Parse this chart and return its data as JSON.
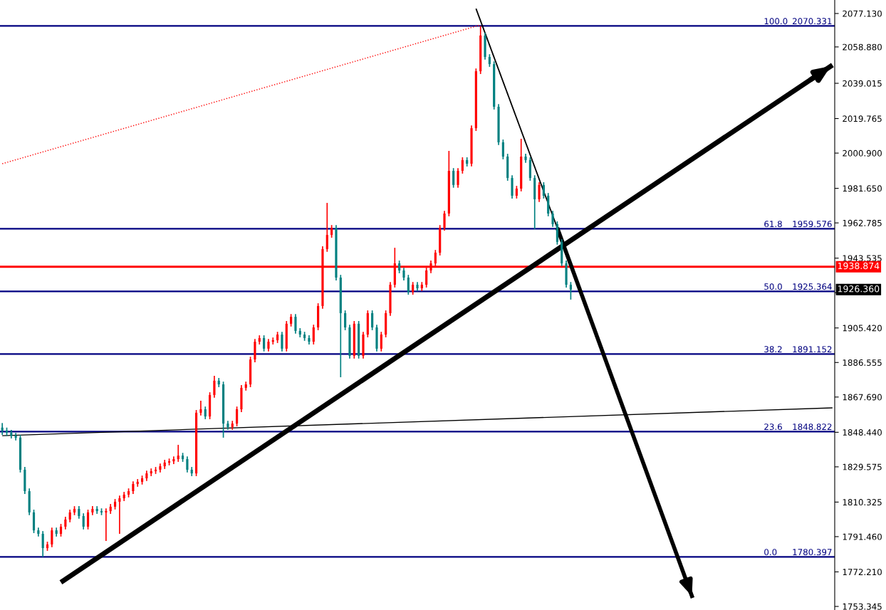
{
  "chart_data": {
    "type": "candlestick",
    "categories": [
      null,
      null,
      null,
      null,
      null,
      null,
      null,
      null,
      null,
      null,
      null,
      null,
      null,
      null,
      null,
      null,
      null,
      null,
      null,
      null,
      null,
      null,
      null,
      null,
      null,
      null,
      null,
      null,
      null,
      null,
      null,
      null,
      null,
      null,
      null,
      null,
      null,
      null,
      null,
      null,
      null,
      null,
      null,
      null,
      null,
      null,
      null,
      null,
      null,
      null,
      null,
      null,
      null,
      null,
      null,
      null,
      null,
      null,
      null,
      null,
      null,
      null,
      null,
      null,
      null,
      null,
      null,
      null,
      null,
      null,
      null,
      null,
      null,
      null,
      null,
      null,
      null,
      null,
      null,
      null,
      null,
      null,
      null,
      null,
      null,
      null,
      null,
      null,
      null,
      null,
      null,
      null,
      null,
      null,
      null,
      null,
      null,
      null,
      null,
      null,
      null,
      null,
      null,
      null,
      null,
      null,
      null,
      null,
      null,
      null,
      null,
      null,
      null,
      null,
      null,
      null,
      null,
      null,
      null,
      null,
      null,
      null,
      null,
      null,
      null,
      null,
      null,
      null,
      null,
      null,
      null,
      null,
      null,
      null,
      null,
      null,
      null,
      null,
      null,
      null,
      null,
      null,
      null,
      null,
      null,
      null,
      null,
      null,
      null,
      null,
      null,
      null,
      null,
      null,
      null,
      null,
      null,
      null,
      null,
      null,
      null,
      null,
      null,
      null,
      null,
      null,
      null,
      null,
      null,
      null,
      null,
      null,
      null,
      null,
      null,
      null,
      null,
      null,
      null,
      null,
      null,
      null,
      null,
      null,
      null
    ],
    "ohlc": [
      [
        1851.0,
        1853.5,
        1847.0,
        1849.4
      ],
      [
        1849.4,
        1851.0,
        1846.5,
        1848.2
      ],
      [
        1848.2,
        1849.7,
        1845.1,
        1846.6
      ],
      [
        1846.6,
        1848.1,
        1844.0,
        1845.5
      ],
      [
        1845.5,
        1847.0,
        1826.5,
        1828.0
      ],
      [
        1828.0,
        1829.5,
        1814.8,
        1816.3
      ],
      [
        1816.3,
        1817.8,
        1803.2,
        1804.7
      ],
      [
        1804.7,
        1806.2,
        1793.4,
        1794.9
      ],
      [
        1794.9,
        1796.4,
        1791.5,
        1793.0
      ],
      [
        1793.0,
        1794.5,
        1780.4,
        1785.2
      ],
      [
        1785.2,
        1788.7,
        1783.7,
        1787.2
      ],
      [
        1787.2,
        1796.4,
        1785.7,
        1794.9
      ],
      [
        1794.9,
        1796.4,
        1791.5,
        1793.0
      ],
      [
        1793.0,
        1798.4,
        1791.5,
        1796.9
      ],
      [
        1796.9,
        1802.3,
        1795.4,
        1800.8
      ],
      [
        1800.8,
        1806.2,
        1799.3,
        1804.7
      ],
      [
        1804.7,
        1808.1,
        1803.2,
        1806.6
      ],
      [
        1806.6,
        1808.1,
        1801.2,
        1802.7
      ],
      [
        1802.7,
        1804.2,
        1795.4,
        1796.9
      ],
      [
        1796.9,
        1806.2,
        1795.4,
        1804.7
      ],
      [
        1804.7,
        1808.1,
        1803.2,
        1806.6
      ],
      [
        1806.6,
        1808.1,
        1803.9,
        1805.4
      ],
      [
        1805.4,
        1806.9,
        1803.2,
        1804.7
      ],
      [
        1804.7,
        1806.9,
        1789.1,
        1805.4
      ],
      [
        1805.4,
        1809.3,
        1803.9,
        1807.8
      ],
      [
        1807.8,
        1812.0,
        1806.3,
        1810.5
      ],
      [
        1810.5,
        1813.9,
        1793.0,
        1812.4
      ],
      [
        1812.4,
        1815.9,
        1810.9,
        1814.4
      ],
      [
        1814.4,
        1817.8,
        1812.9,
        1816.3
      ],
      [
        1816.3,
        1821.7,
        1814.8,
        1820.2
      ],
      [
        1820.2,
        1822.9,
        1818.7,
        1821.4
      ],
      [
        1821.4,
        1824.8,
        1819.9,
        1823.3
      ],
      [
        1823.3,
        1827.5,
        1821.8,
        1826.0
      ],
      [
        1826.0,
        1828.7,
        1824.5,
        1827.2
      ],
      [
        1827.2,
        1829.5,
        1825.7,
        1828.0
      ],
      [
        1828.0,
        1831.4,
        1826.5,
        1829.9
      ],
      [
        1829.9,
        1833.4,
        1828.4,
        1831.9
      ],
      [
        1831.9,
        1834.1,
        1830.4,
        1832.6
      ],
      [
        1832.6,
        1835.3,
        1831.1,
        1833.8
      ],
      [
        1833.8,
        1841.6,
        1832.3,
        1835.7
      ],
      [
        1835.7,
        1837.2,
        1832.3,
        1833.8
      ],
      [
        1833.8,
        1835.3,
        1826.5,
        1828.0
      ],
      [
        1828.0,
        1829.5,
        1824.5,
        1826.0
      ],
      [
        1826.0,
        1860.6,
        1824.5,
        1859.1
      ],
      [
        1859.1,
        1865.7,
        1857.6,
        1861.0
      ],
      [
        1861.0,
        1862.5,
        1855.6,
        1857.1
      ],
      [
        1857.1,
        1870.3,
        1855.6,
        1868.8
      ],
      [
        1868.8,
        1879.3,
        1867.3,
        1876.6
      ],
      [
        1876.6,
        1878.1,
        1873.1,
        1874.6
      ],
      [
        1874.6,
        1876.1,
        1845.5,
        1853.2
      ],
      [
        1853.2,
        1854.7,
        1849.8,
        1851.3
      ],
      [
        1851.3,
        1854.7,
        1849.8,
        1853.2
      ],
      [
        1853.2,
        1862.5,
        1851.7,
        1861.0
      ],
      [
        1861.0,
        1874.2,
        1859.5,
        1872.7
      ],
      [
        1872.7,
        1876.1,
        1871.2,
        1874.6
      ],
      [
        1874.6,
        1889.7,
        1873.1,
        1888.2
      ],
      [
        1888.2,
        1899.4,
        1886.7,
        1897.9
      ],
      [
        1897.9,
        1901.4,
        1896.4,
        1899.9
      ],
      [
        1899.9,
        1901.4,
        1892.6,
        1894.1
      ],
      [
        1894.1,
        1899.4,
        1892.6,
        1897.9
      ],
      [
        1897.9,
        1900.2,
        1896.4,
        1898.7
      ],
      [
        1898.7,
        1903.3,
        1897.2,
        1901.8
      ],
      [
        1901.8,
        1903.3,
        1892.6,
        1894.1
      ],
      [
        1894.1,
        1909.2,
        1892.6,
        1907.7
      ],
      [
        1907.7,
        1913.0,
        1906.2,
        1911.5
      ],
      [
        1911.5,
        1913.0,
        1902.3,
        1903.8
      ],
      [
        1903.8,
        1905.3,
        1900.3,
        1901.8
      ],
      [
        1901.8,
        1903.3,
        1898.4,
        1899.9
      ],
      [
        1899.9,
        1901.4,
        1896.4,
        1897.9
      ],
      [
        1897.9,
        1907.2,
        1896.4,
        1905.7
      ],
      [
        1905.7,
        1918.9,
        1904.2,
        1917.4
      ],
      [
        1917.4,
        1950.0,
        1915.9,
        1948.5
      ],
      [
        1948.5,
        1973.7,
        1947.0,
        1956.2
      ],
      [
        1956.2,
        1961.6,
        1954.7,
        1960.1
      ],
      [
        1960.1,
        1961.6,
        1931.4,
        1932.9
      ],
      [
        1932.9,
        1934.4,
        1878.5,
        1913.5
      ],
      [
        1913.5,
        1915.0,
        1904.2,
        1905.7
      ],
      [
        1905.7,
        1907.2,
        1888.7,
        1890.2
      ],
      [
        1890.2,
        1909.2,
        1888.7,
        1907.7
      ],
      [
        1907.7,
        1909.2,
        1888.7,
        1890.2
      ],
      [
        1890.2,
        1903.3,
        1888.7,
        1901.8
      ],
      [
        1901.8,
        1915.0,
        1900.3,
        1913.5
      ],
      [
        1913.5,
        1915.0,
        1904.2,
        1905.7
      ],
      [
        1905.7,
        1907.2,
        1892.6,
        1894.1
      ],
      [
        1894.1,
        1903.3,
        1892.6,
        1901.8
      ],
      [
        1901.8,
        1915.0,
        1900.3,
        1913.5
      ],
      [
        1913.5,
        1930.5,
        1912.0,
        1929.0
      ],
      [
        1929.0,
        1949.2,
        1927.5,
        1940.7
      ],
      [
        1940.7,
        1942.2,
        1935.3,
        1936.8
      ],
      [
        1936.8,
        1938.3,
        1931.4,
        1932.9
      ],
      [
        1932.9,
        1934.4,
        1923.6,
        1925.1
      ],
      [
        1925.1,
        1930.5,
        1923.6,
        1929.0
      ],
      [
        1929.0,
        1930.5,
        1925.6,
        1927.1
      ],
      [
        1927.1,
        1930.5,
        1925.6,
        1929.0
      ],
      [
        1929.0,
        1938.3,
        1927.5,
        1936.8
      ],
      [
        1936.8,
        1942.2,
        1935.3,
        1940.7
      ],
      [
        1940.7,
        1948.0,
        1939.2,
        1946.5
      ],
      [
        1946.5,
        1961.6,
        1945.0,
        1960.1
      ],
      [
        1960.1,
        1969.4,
        1958.6,
        1967.9
      ],
      [
        1967.9,
        2002.1,
        1966.4,
        1991.2
      ],
      [
        1991.2,
        1992.7,
        1982.0,
        1983.5
      ],
      [
        1983.5,
        1992.7,
        1982.0,
        1991.2
      ],
      [
        1991.2,
        1998.6,
        1989.7,
        1997.1
      ],
      [
        1997.1,
        1998.6,
        1993.6,
        1995.1
      ],
      [
        1995.1,
        2016.0,
        1993.6,
        2014.5
      ],
      [
        2014.5,
        2047.1,
        2013.0,
        2045.6
      ],
      [
        2045.6,
        2070.3,
        2044.1,
        2065.1
      ],
      [
        2065.1,
        2066.6,
        2051.9,
        2053.4
      ],
      [
        2053.4,
        2054.9,
        2048.0,
        2049.5
      ],
      [
        2049.5,
        2051.0,
        2024.7,
        2026.2
      ],
      [
        2026.2,
        2027.7,
        2005.3,
        2006.8
      ],
      [
        2006.8,
        2008.3,
        1997.5,
        1999.0
      ],
      [
        1999.0,
        2000.5,
        1985.8,
        1987.3
      ],
      [
        1987.3,
        1988.8,
        1976.1,
        1977.6
      ],
      [
        1977.6,
        1983.0,
        1976.1,
        1981.5
      ],
      [
        1981.5,
        2008.7,
        1980.0,
        1999.0
      ],
      [
        1999.0,
        2000.5,
        1995.6,
        1997.1
      ],
      [
        1997.1,
        1998.6,
        1985.8,
        1987.3
      ],
      [
        1987.3,
        1988.8,
        1959.4,
        1975.7
      ],
      [
        1975.7,
        1985.0,
        1974.2,
        1983.5
      ],
      [
        1983.5,
        1985.0,
        1976.1,
        1977.6
      ],
      [
        1977.6,
        1979.1,
        1966.4,
        1967.9
      ],
      [
        1967.9,
        1969.4,
        1960.6,
        1962.1
      ],
      [
        1962.1,
        1963.6,
        1950.9,
        1952.4
      ],
      [
        1952.4,
        1953.9,
        1939.2,
        1940.7
      ],
      [
        1940.7,
        1942.2,
        1927.5,
        1929.0
      ],
      [
        1929.0,
        1930.5,
        1920.9,
        1926.36
      ],
      null,
      null,
      null,
      null,
      null,
      null,
      null,
      null,
      null,
      null,
      null,
      null,
      null,
      null,
      null,
      null,
      null,
      null,
      null,
      null,
      null,
      null,
      null,
      null,
      null,
      null,
      null,
      null,
      null,
      null,
      null,
      null,
      null,
      null,
      null,
      null,
      null,
      null,
      null,
      null,
      null,
      null,
      null,
      null,
      null,
      null,
      null,
      null,
      null,
      null,
      null,
      null,
      null,
      null,
      null,
      null,
      null,
      null
    ],
    "colors": [
      "#008080",
      "#008080",
      "#008080",
      "#008080",
      "#008080",
      "#008080",
      "#008080",
      "#008080",
      "#008080",
      "#008080",
      "#ff0000",
      "#ff0000",
      "#008080",
      "#ff0000",
      "#ff0000",
      "#ff0000",
      "#ff0000",
      "#008080",
      "#008080",
      "#ff0000",
      "#ff0000",
      "#008080",
      "#008080",
      "#ff0000",
      "#ff0000",
      "#ff0000",
      "#ff0000",
      "#ff0000",
      "#ff0000",
      "#ff0000",
      "#ff0000",
      "#ff0000",
      "#ff0000",
      "#ff0000",
      "#ff0000",
      "#ff0000",
      "#ff0000",
      "#ff0000",
      "#ff0000",
      "#ff0000",
      "#008080",
      "#008080",
      "#008080",
      "#ff0000",
      "#ff0000",
      "#008080",
      "#ff0000",
      "#ff0000",
      "#008080",
      "#008080",
      "#008080",
      "#ff0000",
      "#ff0000",
      "#ff0000",
      "#ff0000",
      "#ff0000",
      "#ff0000",
      "#ff0000",
      "#008080",
      "#ff0000",
      "#ff0000",
      "#ff0000",
      "#008080",
      "#ff0000",
      "#ff0000",
      "#008080",
      "#008080",
      "#008080",
      "#008080",
      "#ff0000",
      "#ff0000",
      "#ff0000",
      "#ff0000",
      "#ff0000",
      "#008080",
      "#008080",
      "#008080",
      "#008080",
      "#ff0000",
      "#008080",
      "#ff0000",
      "#ff0000",
      "#008080",
      "#008080",
      "#ff0000",
      "#ff0000",
      "#ff0000",
      "#ff0000",
      "#008080",
      "#008080",
      "#008080",
      "#ff0000",
      "#008080",
      "#ff0000",
      "#ff0000",
      "#ff0000",
      "#ff0000",
      "#ff0000",
      "#ff0000",
      "#ff0000",
      "#008080",
      "#ff0000",
      "#ff0000",
      "#008080",
      "#ff0000",
      "#ff0000",
      "#ff0000",
      "#008080",
      "#008080",
      "#008080",
      "#008080",
      "#008080",
      "#008080",
      "#008080",
      "#ff0000",
      "#ff0000",
      "#008080",
      "#008080",
      "#008080",
      "#ff0000",
      "#008080",
      "#008080",
      "#008080",
      "#008080",
      "#008080",
      "#008080",
      "#008080",
      null,
      null,
      null,
      null,
      null,
      null,
      null,
      null,
      null,
      null,
      null,
      null,
      null,
      null,
      null,
      null,
      null,
      null,
      null,
      null,
      null,
      null,
      null,
      null,
      null,
      null,
      null,
      null,
      null,
      null,
      null,
      null,
      null,
      null,
      null,
      null,
      null,
      null,
      null,
      null,
      null,
      null,
      null,
      null,
      null,
      null,
      null,
      null,
      null,
      null,
      null,
      null,
      null,
      null,
      null,
      null,
      null,
      null
    ],
    "series": [
      {
        "type": "line",
        "color": "#000000",
        "values": [
          null,
          null,
          null,
          null,
          null,
          null,
          null,
          null,
          null,
          null,
          null,
          null,
          null,
          1766.5,
          null,
          null,
          null,
          null,
          null,
          null,
          null,
          null,
          null,
          null,
          null,
          null,
          null,
          null,
          null,
          null,
          null,
          null,
          null,
          null,
          null,
          null,
          null,
          null,
          null,
          null,
          null,
          null,
          null,
          null,
          null,
          null,
          null,
          null,
          null,
          null,
          null,
          null,
          null,
          null,
          null,
          null,
          null,
          null,
          null,
          null,
          null,
          null,
          null,
          null,
          null,
          null,
          null,
          null,
          null,
          null,
          null,
          null,
          null,
          null,
          null,
          null,
          null,
          null,
          null,
          null,
          null,
          null,
          null,
          null,
          null,
          null,
          null,
          null,
          null,
          null,
          null,
          null,
          null,
          null,
          null,
          null,
          null,
          null,
          null,
          null,
          null,
          null,
          null,
          null,
          null,
          null,
          null,
          null,
          null,
          null,
          null,
          null,
          null,
          null,
          null,
          null,
          null,
          null,
          null,
          null,
          null,
          null,
          null,
          null,
          null,
          null,
          null,
          null,
          null,
          null,
          null,
          null,
          null,
          null,
          null,
          null,
          null,
          null,
          null,
          null,
          null,
          null,
          null,
          null,
          null,
          null,
          null,
          null,
          null,
          null,
          null,
          null,
          null,
          null,
          null,
          null,
          null,
          null,
          null,
          null,
          null,
          null,
          null,
          null,
          null,
          null,
          null,
          null,
          null,
          null,
          null,
          null,
          null,
          null,
          null,
          null,
          null,
          null,
          null,
          null,
          null,
          null,
          null,
          null,
          2049.0
        ]
      },
      {
        "type": "line",
        "color": "#000000",
        "values": [
          null,
          null,
          null,
          null,
          null,
          null,
          null,
          null,
          null,
          null,
          null,
          null,
          null,
          null,
          null,
          null,
          null,
          null,
          null,
          null,
          null,
          null,
          null,
          null,
          null,
          null,
          null,
          null,
          null,
          null,
          null,
          null,
          null,
          null,
          null,
          null,
          null,
          null,
          null,
          null,
          null,
          null,
          null,
          null,
          null,
          null,
          null,
          null,
          null,
          null,
          null,
          null,
          null,
          null,
          null,
          null,
          null,
          null,
          null,
          null,
          null,
          null,
          null,
          null,
          null,
          null,
          null,
          null,
          null,
          null,
          null,
          null,
          null,
          null,
          null,
          null,
          null,
          null,
          null,
          null,
          null,
          null,
          null,
          null,
          null,
          null,
          null,
          null,
          null,
          null,
          null,
          null,
          null,
          null,
          null,
          null,
          null,
          null,
          null,
          null,
          null,
          null,
          null,
          null,
          null,
          2079.8,
          null,
          null,
          null,
          null,
          null,
          null,
          null,
          null,
          null,
          null,
          null,
          null,
          null,
          null,
          null,
          null,
          null,
          1960.1,
          null,
          null,
          null,
          null,
          null,
          null,
          null,
          null,
          null,
          null,
          null,
          null,
          null,
          null,
          null,
          null,
          null,
          null,
          null,
          null,
          null,
          null,
          null,
          null,
          null,
          null,
          null,
          null,
          null,
          null,
          null,
          null,
          null,
          null,
          null,
          null,
          null,
          null,
          null,
          null,
          null,
          null,
          null,
          null,
          null,
          null,
          null,
          null,
          null,
          null,
          null,
          null,
          null,
          null,
          null,
          null,
          null,
          null,
          null,
          null,
          null
        ]
      },
      {
        "type": "line",
        "color": "#000000",
        "values": [
          null,
          null,
          null,
          null,
          null,
          null,
          null,
          null,
          null,
          null,
          null,
          null,
          null,
          null,
          null,
          null,
          null,
          null,
          null,
          null,
          null,
          null,
          null,
          null,
          null,
          null,
          null,
          null,
          null,
          null,
          null,
          null,
          null,
          null,
          null,
          null,
          null,
          null,
          null,
          null,
          null,
          null,
          null,
          null,
          null,
          null,
          null,
          null,
          null,
          null,
          null,
          null,
          null,
          null,
          null,
          null,
          null,
          null,
          null,
          null,
          null,
          null,
          null,
          null,
          null,
          null,
          null,
          null,
          null,
          null,
          null,
          null,
          null,
          null,
          null,
          null,
          null,
          null,
          null,
          null,
          null,
          null,
          null,
          null,
          null,
          null,
          null,
          null,
          null,
          null,
          null,
          null,
          null,
          null,
          null,
          null,
          null,
          null,
          null,
          null,
          null,
          null,
          null,
          null,
          null,
          null,
          null,
          null,
          null,
          null,
          null,
          null,
          null,
          null,
          null,
          null,
          null,
          null,
          null,
          null,
          null,
          null,
          null,
          1960.1,
          null,
          null,
          null,
          null,
          null,
          null,
          null,
          null,
          null,
          null,
          null,
          null,
          null,
          null,
          null,
          null,
          null,
          null,
          null,
          null,
          null,
          null,
          null,
          null,
          null,
          null,
          null,
          null,
          null,
          1758.0,
          null,
          null,
          null,
          null,
          null,
          null,
          null,
          null,
          null,
          null,
          null,
          null,
          null,
          null,
          null,
          null,
          null,
          null,
          null,
          null,
          null,
          null,
          null,
          null,
          null,
          null,
          null,
          null,
          null,
          null,
          null
        ]
      },
      {
        "type": "line",
        "color": "#ff0000",
        "line_style": "dotted",
        "values": [
          1995.1,
          null,
          null,
          null,
          null,
          null,
          null,
          null,
          null,
          null,
          null,
          null,
          null,
          null,
          null,
          null,
          null,
          null,
          null,
          null,
          null,
          null,
          null,
          null,
          null,
          null,
          null,
          null,
          null,
          null,
          null,
          null,
          null,
          null,
          null,
          null,
          null,
          null,
          null,
          null,
          null,
          null,
          null,
          null,
          null,
          null,
          null,
          null,
          null,
          null,
          null,
          null,
          null,
          null,
          null,
          null,
          null,
          null,
          null,
          null,
          null,
          null,
          null,
          null,
          null,
          null,
          null,
          null,
          null,
          null,
          null,
          null,
          null,
          null,
          null,
          null,
          null,
          null,
          null,
          null,
          null,
          null,
          null,
          null,
          null,
          null,
          null,
          null,
          null,
          null,
          null,
          null,
          null,
          null,
          null,
          null,
          null,
          null,
          null,
          null,
          null,
          null,
          null,
          null,
          null,
          null,
          2070.9,
          null,
          null,
          null,
          null,
          null,
          null,
          null,
          null,
          null,
          null,
          null,
          null,
          null,
          null,
          null,
          null,
          null,
          null,
          null,
          null,
          null,
          null,
          null,
          null,
          null,
          null,
          null,
          null,
          null,
          null,
          null,
          null,
          null,
          null,
          null,
          null,
          null,
          null,
          null,
          null,
          null,
          null,
          null,
          null,
          null,
          null,
          null,
          null,
          null,
          null,
          null,
          null,
          null,
          null,
          null,
          null,
          null,
          null,
          null,
          null,
          null,
          null,
          null,
          null,
          null,
          null,
          null,
          null,
          null,
          null,
          null,
          null,
          null,
          null,
          null,
          null,
          null,
          null
        ]
      },
      {
        "type": "line",
        "color": "#000000",
        "values": [
          1846.6,
          null,
          null,
          null,
          null,
          null,
          null,
          null,
          null,
          null,
          null,
          null,
          null,
          null,
          null,
          null,
          null,
          null,
          null,
          null,
          null,
          null,
          null,
          null,
          null,
          null,
          null,
          null,
          null,
          null,
          null,
          null,
          null,
          null,
          null,
          null,
          null,
          null,
          null,
          null,
          null,
          null,
          null,
          null,
          null,
          null,
          null,
          null,
          null,
          null,
          null,
          null,
          null,
          null,
          null,
          null,
          null,
          null,
          null,
          null,
          null,
          null,
          null,
          null,
          null,
          null,
          null,
          null,
          null,
          null,
          null,
          null,
          null,
          null,
          null,
          null,
          null,
          null,
          null,
          null,
          null,
          null,
          null,
          null,
          null,
          null,
          null,
          null,
          null,
          null,
          null,
          null,
          null,
          null,
          null,
          null,
          null,
          null,
          null,
          null,
          null,
          null,
          null,
          null,
          null,
          null,
          null,
          null,
          null,
          null,
          null,
          null,
          null,
          null,
          null,
          null,
          null,
          null,
          null,
          null,
          null,
          null,
          null,
          null,
          null,
          null,
          null,
          null,
          null,
          null,
          null,
          null,
          null,
          null,
          null,
          null,
          null,
          null,
          null,
          null,
          null,
          null,
          null,
          null,
          null,
          null,
          null,
          null,
          null,
          null,
          null,
          null,
          null,
          null,
          null,
          null,
          null,
          null,
          null,
          null,
          null,
          null,
          null,
          null,
          null,
          null,
          null,
          null,
          null,
          null,
          null,
          null,
          null,
          null,
          null,
          null,
          null,
          null,
          null,
          null,
          null,
          null,
          null,
          null,
          1861.8
        ]
      }
    ],
    "ylim": [
      1751.4,
      2084.5
    ],
    "yticks": [
      {
        "value": 2077.13,
        "label": "2077.130"
      },
      {
        "value": 2058.88,
        "label": "2058.880"
      },
      {
        "value": 2039.015,
        "label": "2039.015"
      },
      {
        "value": 2019.765,
        "label": "2019.765"
      },
      {
        "value": 2000.9,
        "label": "2000.900"
      },
      {
        "value": 1981.65,
        "label": "1981.650"
      },
      {
        "value": 1962.785,
        "label": "1962.785"
      },
      {
        "value": 1943.535,
        "label": "1943.535"
      },
      {
        "value": 1924.67,
        "label": null
      },
      {
        "value": 1905.42,
        "label": "1905.420"
      },
      {
        "value": 1886.555,
        "label": "1886.555"
      },
      {
        "value": 1867.69,
        "label": "1867.690"
      },
      {
        "value": 1848.44,
        "label": "1848.440"
      },
      {
        "value": 1829.575,
        "label": "1829.575"
      },
      {
        "value": 1810.325,
        "label": "1810.325"
      },
      {
        "value": 1791.46,
        "label": "1791.460"
      },
      {
        "value": 1772.21,
        "label": "1772.210"
      },
      {
        "value": 1753.345,
        "label": "1753.345"
      }
    ],
    "tick_labels": "y",
    "grid": false,
    "ref_lines": [
      {
        "axis": "y",
        "value": 2070.331,
        "label": "100.0 2070.331",
        "color": "#000080"
      },
      {
        "axis": "y",
        "value": 1959.576,
        "label": "61.8 1959.576",
        "color": "#000080"
      },
      {
        "axis": "y",
        "value": 1925.364,
        "label": "50.0 1925.364",
        "color": "#000080"
      },
      {
        "axis": "y",
        "value": 1891.152,
        "label": "38.2 1891.152",
        "color": "#000080"
      },
      {
        "axis": "y",
        "value": 1848.822,
        "label": "23.6 1848.822",
        "color": "#000080"
      },
      {
        "axis": "y",
        "value": 1780.397,
        "label": "0.0 1780.397",
        "color": "#000080"
      },
      {
        "axis": "y",
        "value": 1938.874,
        "label": "1938.874",
        "color": "#ff0000"
      }
    ],
    "annotations": [
      "1926.360"
    ]
  }
}
